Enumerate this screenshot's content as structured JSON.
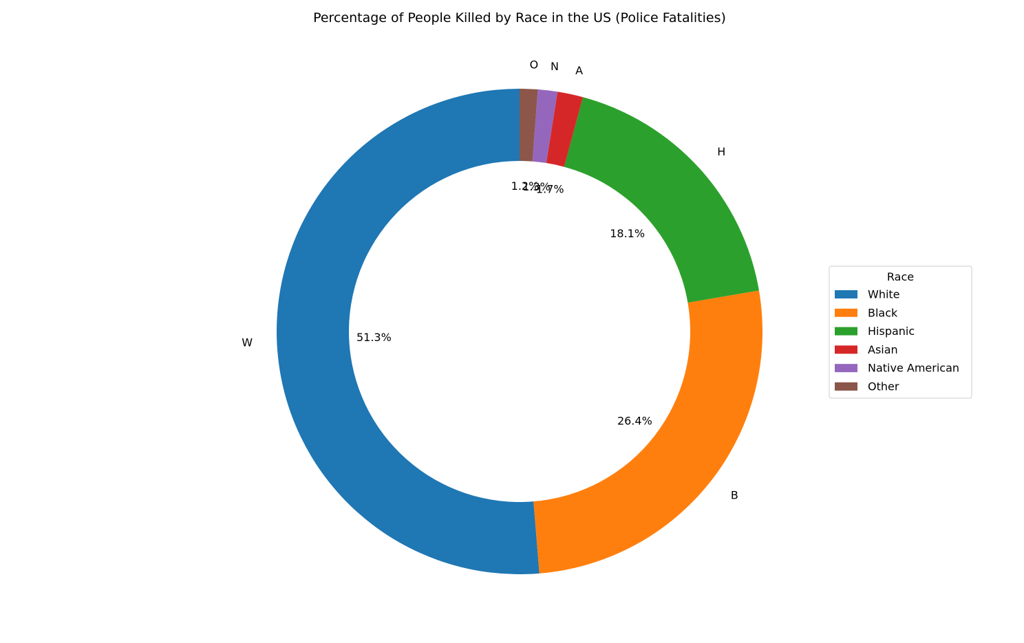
{
  "chart_data": {
    "type": "pie",
    "title": "Percentage of People Killed by Race in the US (Police Fatalities)",
    "style": "donut",
    "start_angle_deg": 90,
    "direction": "counterclockwise",
    "categories": [
      "W",
      "B",
      "H",
      "A",
      "N",
      "O"
    ],
    "values": [
      51.3,
      26.4,
      18.1,
      1.7,
      1.3,
      1.2
    ],
    "value_labels": [
      "51.3%",
      "26.4%",
      "18.1%",
      "1.7%",
      "1.3%",
      "1.2%"
    ],
    "colors": [
      "#1f77b4",
      "#ff7f0e",
      "#2ca02c",
      "#d62728",
      "#9467bd",
      "#8c564b"
    ],
    "legend": {
      "title": "Race",
      "placement": "right",
      "entries": [
        "White",
        "Black",
        "Hispanic",
        "Asian",
        "Native American",
        "Other"
      ]
    }
  }
}
